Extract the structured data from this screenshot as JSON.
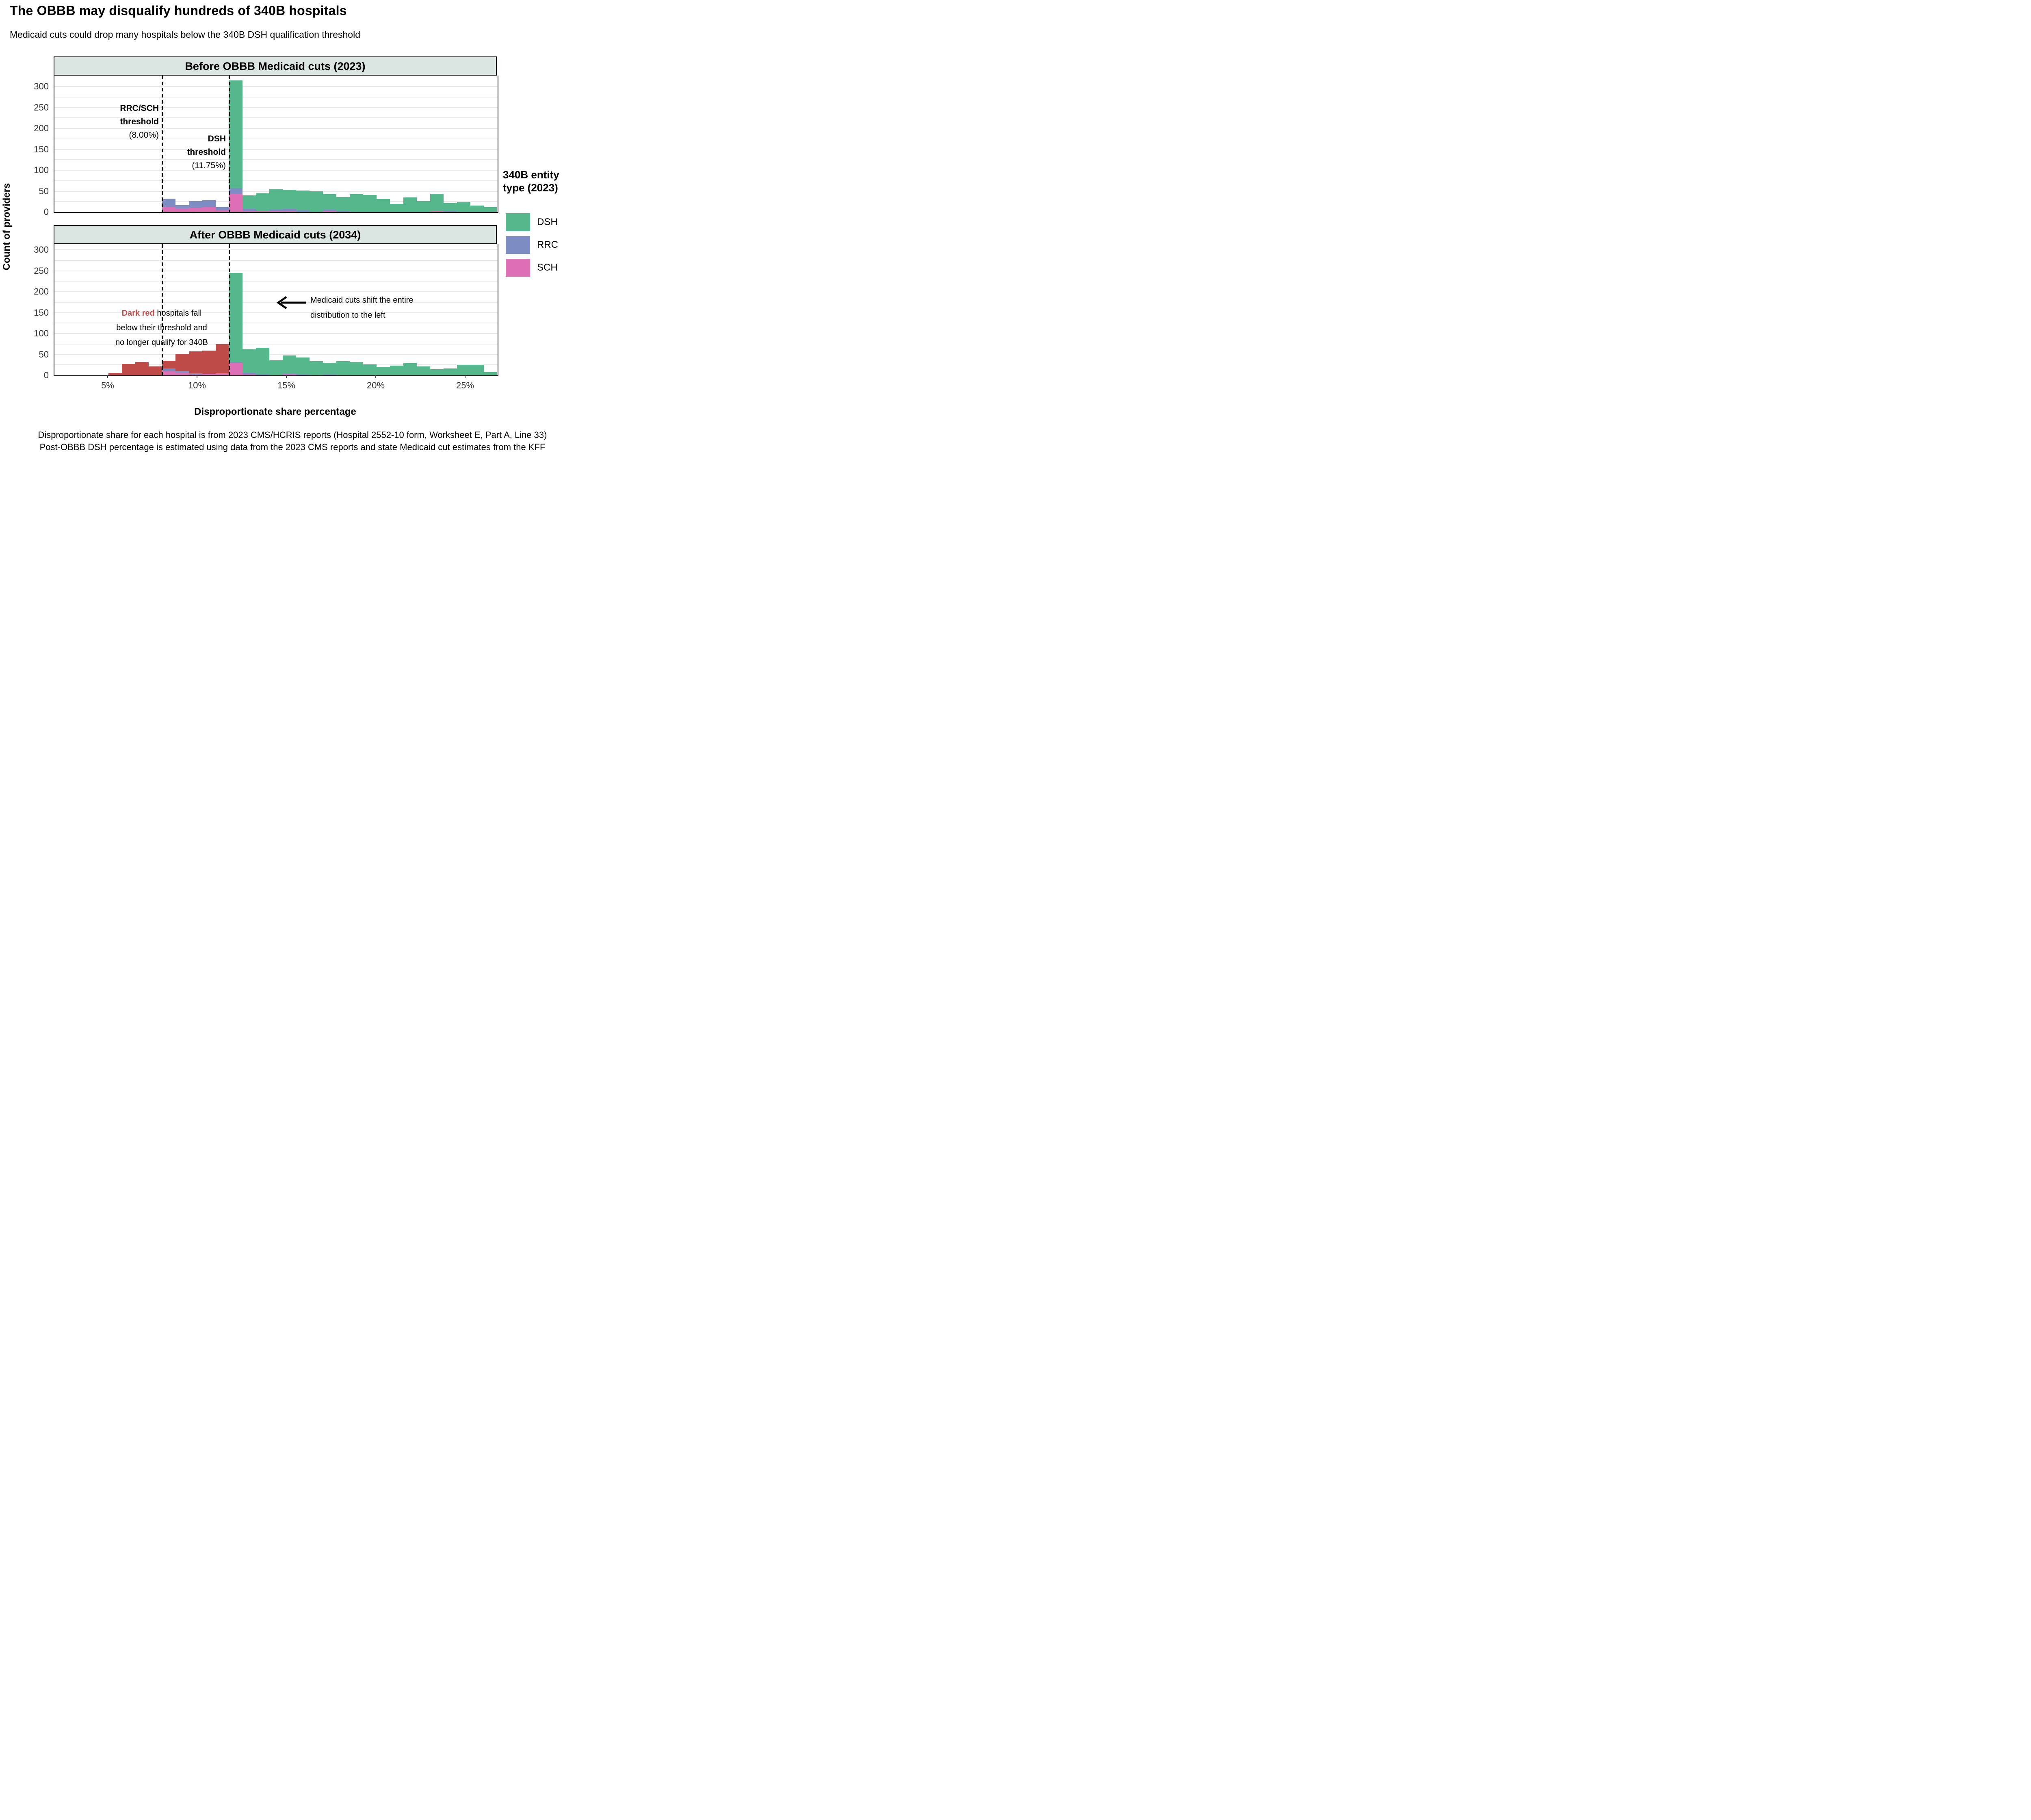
{
  "title": "The OBBB may disqualify hundreds of 340B hospitals",
  "subtitle": "Medicaid cuts could drop many hospitals below the 340B DSH qualification threshold",
  "axis": {
    "x_label": "Disproportionate share percentage",
    "y_label": "Count of providers"
  },
  "footnotes": [
    "Disproportionate share for each hospital is from 2023 CMS/HCRIS reports (Hospital 2552-10 form, Worksheet E, Part A, Line 33)",
    "Post-OBBB DSH percentage is estimated using data from the 2023 CMS reports and state Medicaid cut estimates from the KFF"
  ],
  "legend": {
    "title_lines": [
      "340B entity",
      "type (2023)"
    ],
    "items": [
      {
        "key": "dsh",
        "label": "DSH"
      },
      {
        "key": "rrc",
        "label": "RRC"
      },
      {
        "key": "sch",
        "label": "SCH"
      }
    ]
  },
  "colors": {
    "dsh": "#55b88c",
    "rrc": "#7d8cc2",
    "sch": "#dd70b5",
    "red": "#bf4b48",
    "red_text": "#c0504d",
    "header_bg": "#dbe5e2",
    "grid": "#e7e7e7"
  },
  "chart_data": {
    "type": "bar",
    "subtype": "stacked histogram, 2 vertical facets (before/after)",
    "bin_width_pct": 0.75,
    "xlabel": "Disproportionate share percentage",
    "ylabel": "Count of providers",
    "x_range_pct": [
      2.0,
      26.75
    ],
    "x_ticks": [
      {
        "value": 5,
        "label": "5%"
      },
      {
        "value": 10,
        "label": "10%"
      },
      {
        "value": 15,
        "label": "15%"
      },
      {
        "value": 20,
        "label": "20%"
      },
      {
        "value": 25,
        "label": "25%"
      }
    ],
    "y_ticks": [
      0,
      50,
      100,
      150,
      200,
      250,
      300
    ],
    "y_minor_grid_step": 25,
    "y_max": 325,
    "series_order": [
      "sch",
      "rrc",
      "red",
      "dsh"
    ],
    "series_names": {
      "sch": "SCH",
      "rrc": "RRC",
      "dsh": "DSH",
      "red": "hospitals that fall below threshold (disqualified)"
    },
    "thresholds": [
      {
        "x_pct": 8.0,
        "label_lines": [
          {
            "text": "RRC/SCH",
            "bold": true
          },
          {
            "text": "threshold",
            "bold": true
          },
          {
            "text": "(8.00%)",
            "bold": false
          }
        ]
      },
      {
        "x_pct": 11.75,
        "label_lines": [
          {
            "text": "DSH",
            "bold": true
          },
          {
            "text": "threshold",
            "bold": true
          },
          {
            "text": "(11.75%)",
            "bold": false
          }
        ]
      }
    ],
    "panels": [
      {
        "title": "Before OBBB Medicaid cuts (2023)",
        "bars": [
          {
            "x": 8.0,
            "sch": 12,
            "rrc": 20,
            "red": 0,
            "dsh": 0
          },
          {
            "x": 8.75,
            "sch": 9,
            "rrc": 8,
            "red": 0,
            "dsh": 0
          },
          {
            "x": 9.5,
            "sch": 11,
            "rrc": 15,
            "red": 0,
            "dsh": 0
          },
          {
            "x": 10.25,
            "sch": 12,
            "rrc": 16,
            "red": 0,
            "dsh": 0
          },
          {
            "x": 11.0,
            "sch": 4,
            "rrc": 8,
            "red": 0,
            "dsh": 0
          },
          {
            "x": 11.75,
            "sch": 44,
            "rrc": 13,
            "red": 0,
            "dsh": 258
          },
          {
            "x": 12.5,
            "sch": 3,
            "rrc": 5,
            "red": 0,
            "dsh": 32
          },
          {
            "x": 13.25,
            "sch": 2,
            "rrc": 1,
            "red": 0,
            "dsh": 42
          },
          {
            "x": 14.0,
            "sch": 2,
            "rrc": 4,
            "red": 0,
            "dsh": 49
          },
          {
            "x": 14.75,
            "sch": 3,
            "rrc": 5,
            "red": 0,
            "dsh": 45
          },
          {
            "x": 15.5,
            "sch": 1,
            "rrc": 3,
            "red": 0,
            "dsh": 47
          },
          {
            "x": 16.25,
            "sch": 0,
            "rrc": 1,
            "red": 0,
            "dsh": 49
          },
          {
            "x": 17.0,
            "sch": 3,
            "rrc": 3,
            "red": 0,
            "dsh": 37
          },
          {
            "x": 17.75,
            "sch": 0,
            "rrc": 2,
            "red": 0,
            "dsh": 34
          },
          {
            "x": 18.5,
            "sch": 0,
            "rrc": 0,
            "red": 0,
            "dsh": 43
          },
          {
            "x": 19.25,
            "sch": 0,
            "rrc": 0,
            "red": 0,
            "dsh": 41
          },
          {
            "x": 20.0,
            "sch": 0,
            "rrc": 0,
            "red": 0,
            "dsh": 31
          },
          {
            "x": 20.75,
            "sch": 0,
            "rrc": 0,
            "red": 0,
            "dsh": 19
          },
          {
            "x": 21.5,
            "sch": 0,
            "rrc": 0,
            "red": 0,
            "dsh": 35
          },
          {
            "x": 22.25,
            "sch": 0,
            "rrc": 0,
            "red": 0,
            "dsh": 26
          },
          {
            "x": 23.0,
            "sch": 2,
            "rrc": 1,
            "red": 0,
            "dsh": 41
          },
          {
            "x": 23.75,
            "sch": 0,
            "rrc": 2,
            "red": 0,
            "dsh": 19
          },
          {
            "x": 24.5,
            "sch": 0,
            "rrc": 0,
            "red": 0,
            "dsh": 24
          },
          {
            "x": 25.25,
            "sch": 0,
            "rrc": 0,
            "red": 0,
            "dsh": 16
          },
          {
            "x": 26.0,
            "sch": 0,
            "rrc": 0,
            "red": 0,
            "dsh": 12
          }
        ]
      },
      {
        "title": "After OBBB Medicaid cuts (2034)",
        "annotations": {
          "dark_red_note": {
            "highlight": "Dark red",
            "line1_rest": " hospitals fall",
            "lines": [
              "below their threshold and",
              "no longer qualify for 340B"
            ]
          },
          "shift_note": {
            "lines": [
              "Medicaid cuts shift the entire",
              "distribution to the left"
            ]
          }
        },
        "bars": [
          {
            "x": 5.0,
            "sch": 0,
            "rrc": 0,
            "red": 6,
            "dsh": 0
          },
          {
            "x": 5.75,
            "sch": 0,
            "rrc": 0,
            "red": 27,
            "dsh": 0
          },
          {
            "x": 6.5,
            "sch": 0,
            "rrc": 0,
            "red": 32,
            "dsh": 0
          },
          {
            "x": 7.25,
            "sch": 0,
            "rrc": 0,
            "red": 21,
            "dsh": 0
          },
          {
            "x": 8.0,
            "sch": 10,
            "rrc": 7,
            "red": 18,
            "dsh": 0
          },
          {
            "x": 8.75,
            "sch": 7,
            "rrc": 4,
            "red": 40,
            "dsh": 0
          },
          {
            "x": 9.5,
            "sch": 2,
            "rrc": 3,
            "red": 52,
            "dsh": 0
          },
          {
            "x": 10.25,
            "sch": 4,
            "rrc": 0,
            "red": 55,
            "dsh": 0
          },
          {
            "x": 11.0,
            "sch": 5,
            "rrc": 0,
            "red": 70,
            "dsh": 0
          },
          {
            "x": 11.75,
            "sch": 30,
            "rrc": 2,
            "red": 0,
            "dsh": 213
          },
          {
            "x": 12.5,
            "sch": 2,
            "rrc": 4,
            "red": 0,
            "dsh": 56
          },
          {
            "x": 13.25,
            "sch": 1,
            "rrc": 2,
            "red": 0,
            "dsh": 63
          },
          {
            "x": 14.0,
            "sch": 0,
            "rrc": 0,
            "red": 0,
            "dsh": 36
          },
          {
            "x": 14.75,
            "sch": 3,
            "rrc": 1,
            "red": 0,
            "dsh": 44
          },
          {
            "x": 15.5,
            "sch": 0,
            "rrc": 2,
            "red": 0,
            "dsh": 41
          },
          {
            "x": 16.25,
            "sch": 0,
            "rrc": 0,
            "red": 0,
            "dsh": 34
          },
          {
            "x": 17.0,
            "sch": 0,
            "rrc": 2,
            "red": 0,
            "dsh": 28
          },
          {
            "x": 17.75,
            "sch": 0,
            "rrc": 0,
            "red": 0,
            "dsh": 34
          },
          {
            "x": 18.5,
            "sch": 0,
            "rrc": 1,
            "red": 0,
            "dsh": 31
          },
          {
            "x": 19.25,
            "sch": 0,
            "rrc": 0,
            "red": 0,
            "dsh": 26
          },
          {
            "x": 20.0,
            "sch": 0,
            "rrc": 0,
            "red": 0,
            "dsh": 20
          },
          {
            "x": 20.75,
            "sch": 0,
            "rrc": 0,
            "red": 0,
            "dsh": 23
          },
          {
            "x": 21.5,
            "sch": 0,
            "rrc": 0,
            "red": 0,
            "dsh": 29
          },
          {
            "x": 22.25,
            "sch": 0,
            "rrc": 0,
            "red": 0,
            "dsh": 21
          },
          {
            "x": 23.0,
            "sch": 0,
            "rrc": 0,
            "red": 0,
            "dsh": 15
          },
          {
            "x": 23.75,
            "sch": 0,
            "rrc": 0,
            "red": 0,
            "dsh": 17
          },
          {
            "x": 24.5,
            "sch": 0,
            "rrc": 0,
            "red": 0,
            "dsh": 25
          },
          {
            "x": 25.25,
            "sch": 0,
            "rrc": 0,
            "red": 0,
            "dsh": 25
          },
          {
            "x": 26.0,
            "sch": 0,
            "rrc": 0,
            "red": 0,
            "dsh": 8
          }
        ]
      }
    ]
  }
}
